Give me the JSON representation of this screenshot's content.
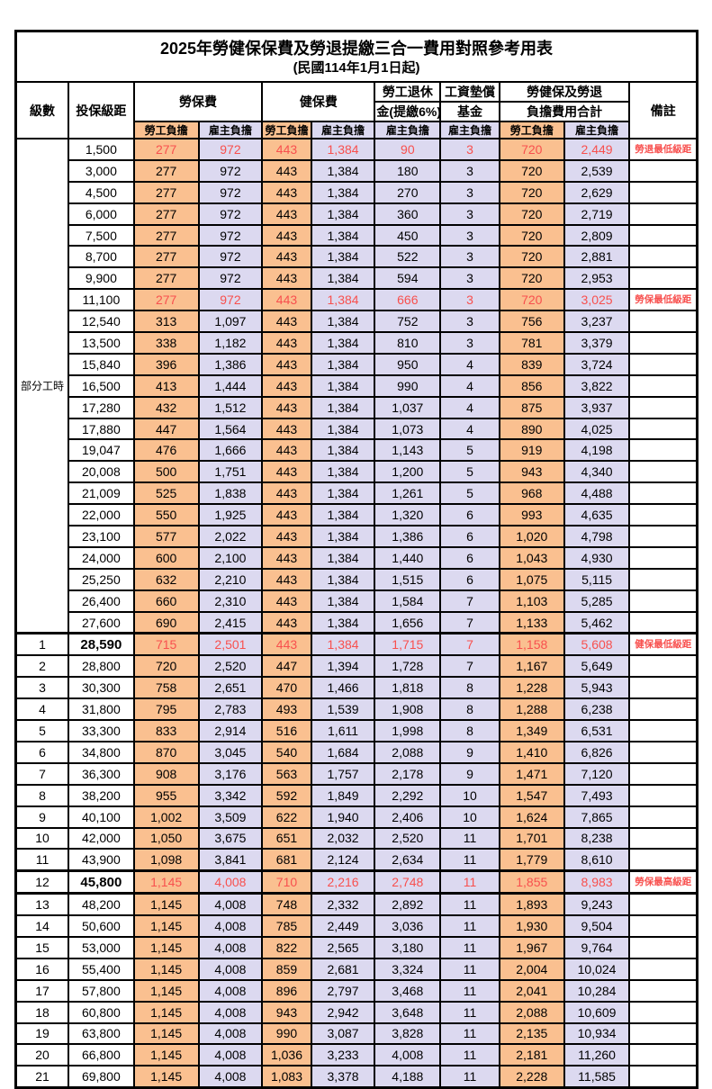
{
  "title": "2025年勞健保保費及勞退提繳三合一費用對照參考用表",
  "subtitle": "(民國114年1月1日起)",
  "colors": {
    "orange": "#FAC090",
    "lavender": "#DCD9F0",
    "red": "#F8504E"
  },
  "header": {
    "level": "級數",
    "bracket": "投保級距",
    "labor": "勞保費",
    "health": "健保費",
    "pension_line1": "勞工退休",
    "pension_line2": "金(提繳6%)",
    "wage_line1": "工資墊償",
    "wage_line2": "基金",
    "total_line1": "勞健保及勞退",
    "total_line2": "負擔費用合計",
    "note": "備註",
    "employee": "勞工負擔",
    "employer": "雇主負擔"
  },
  "part_time_label": "部分工時",
  "part_time_rowspan": 23,
  "rows": [
    {
      "level": "",
      "bracket": "1,500",
      "labor_ee": "277",
      "labor_er": "972",
      "health_ee": "443",
      "health_er": "1,384",
      "pension": "90",
      "wage": "3",
      "total_ee": "720",
      "total_er": "2,449",
      "note": "勞退最低級距",
      "red": true
    },
    {
      "level": "",
      "bracket": "3,000",
      "labor_ee": "277",
      "labor_er": "972",
      "health_ee": "443",
      "health_er": "1,384",
      "pension": "180",
      "wage": "3",
      "total_ee": "720",
      "total_er": "2,539",
      "note": ""
    },
    {
      "level": "",
      "bracket": "4,500",
      "labor_ee": "277",
      "labor_er": "972",
      "health_ee": "443",
      "health_er": "1,384",
      "pension": "270",
      "wage": "3",
      "total_ee": "720",
      "total_er": "2,629",
      "note": ""
    },
    {
      "level": "",
      "bracket": "6,000",
      "labor_ee": "277",
      "labor_er": "972",
      "health_ee": "443",
      "health_er": "1,384",
      "pension": "360",
      "wage": "3",
      "total_ee": "720",
      "total_er": "2,719",
      "note": ""
    },
    {
      "level": "",
      "bracket": "7,500",
      "labor_ee": "277",
      "labor_er": "972",
      "health_ee": "443",
      "health_er": "1,384",
      "pension": "450",
      "wage": "3",
      "total_ee": "720",
      "total_er": "2,809",
      "note": ""
    },
    {
      "level": "",
      "bracket": "8,700",
      "labor_ee": "277",
      "labor_er": "972",
      "health_ee": "443",
      "health_er": "1,384",
      "pension": "522",
      "wage": "3",
      "total_ee": "720",
      "total_er": "2,881",
      "note": ""
    },
    {
      "level": "",
      "bracket": "9,900",
      "labor_ee": "277",
      "labor_er": "972",
      "health_ee": "443",
      "health_er": "1,384",
      "pension": "594",
      "wage": "3",
      "total_ee": "720",
      "total_er": "2,953",
      "note": ""
    },
    {
      "level": "",
      "bracket": "11,100",
      "labor_ee": "277",
      "labor_er": "972",
      "health_ee": "443",
      "health_er": "1,384",
      "pension": "666",
      "wage": "3",
      "total_ee": "720",
      "total_er": "3,025",
      "note": "勞保最低級距",
      "red": true
    },
    {
      "level": "",
      "bracket": "12,540",
      "labor_ee": "313",
      "labor_er": "1,097",
      "health_ee": "443",
      "health_er": "1,384",
      "pension": "752",
      "wage": "3",
      "total_ee": "756",
      "total_er": "3,237",
      "note": ""
    },
    {
      "level": "",
      "bracket": "13,500",
      "labor_ee": "338",
      "labor_er": "1,182",
      "health_ee": "443",
      "health_er": "1,384",
      "pension": "810",
      "wage": "3",
      "total_ee": "781",
      "total_er": "3,379",
      "note": ""
    },
    {
      "level": "",
      "bracket": "15,840",
      "labor_ee": "396",
      "labor_er": "1,386",
      "health_ee": "443",
      "health_er": "1,384",
      "pension": "950",
      "wage": "4",
      "total_ee": "839",
      "total_er": "3,724",
      "note": ""
    },
    {
      "level": "",
      "bracket": "16,500",
      "labor_ee": "413",
      "labor_er": "1,444",
      "health_ee": "443",
      "health_er": "1,384",
      "pension": "990",
      "wage": "4",
      "total_ee": "856",
      "total_er": "3,822",
      "note": ""
    },
    {
      "level": "",
      "bracket": "17,280",
      "labor_ee": "432",
      "labor_er": "1,512",
      "health_ee": "443",
      "health_er": "1,384",
      "pension": "1,037",
      "wage": "4",
      "total_ee": "875",
      "total_er": "3,937",
      "note": ""
    },
    {
      "level": "",
      "bracket": "17,880",
      "labor_ee": "447",
      "labor_er": "1,564",
      "health_ee": "443",
      "health_er": "1,384",
      "pension": "1,073",
      "wage": "4",
      "total_ee": "890",
      "total_er": "4,025",
      "note": ""
    },
    {
      "level": "",
      "bracket": "19,047",
      "labor_ee": "476",
      "labor_er": "1,666",
      "health_ee": "443",
      "health_er": "1,384",
      "pension": "1,143",
      "wage": "5",
      "total_ee": "919",
      "total_er": "4,198",
      "note": ""
    },
    {
      "level": "",
      "bracket": "20,008",
      "labor_ee": "500",
      "labor_er": "1,751",
      "health_ee": "443",
      "health_er": "1,384",
      "pension": "1,200",
      "wage": "5",
      "total_ee": "943",
      "total_er": "4,340",
      "note": ""
    },
    {
      "level": "",
      "bracket": "21,009",
      "labor_ee": "525",
      "labor_er": "1,838",
      "health_ee": "443",
      "health_er": "1,384",
      "pension": "1,261",
      "wage": "5",
      "total_ee": "968",
      "total_er": "4,488",
      "note": ""
    },
    {
      "level": "",
      "bracket": "22,000",
      "labor_ee": "550",
      "labor_er": "1,925",
      "health_ee": "443",
      "health_er": "1,384",
      "pension": "1,320",
      "wage": "6",
      "total_ee": "993",
      "total_er": "4,635",
      "note": ""
    },
    {
      "level": "",
      "bracket": "23,100",
      "labor_ee": "577",
      "labor_er": "2,022",
      "health_ee": "443",
      "health_er": "1,384",
      "pension": "1,386",
      "wage": "6",
      "total_ee": "1,020",
      "total_er": "4,798",
      "note": ""
    },
    {
      "level": "",
      "bracket": "24,000",
      "labor_ee": "600",
      "labor_er": "2,100",
      "health_ee": "443",
      "health_er": "1,384",
      "pension": "1,440",
      "wage": "6",
      "total_ee": "1,043",
      "total_er": "4,930",
      "note": ""
    },
    {
      "level": "",
      "bracket": "25,250",
      "labor_ee": "632",
      "labor_er": "2,210",
      "health_ee": "443",
      "health_er": "1,384",
      "pension": "1,515",
      "wage": "6",
      "total_ee": "1,075",
      "total_er": "5,115",
      "note": ""
    },
    {
      "level": "",
      "bracket": "26,400",
      "labor_ee": "660",
      "labor_er": "2,310",
      "health_ee": "443",
      "health_er": "1,384",
      "pension": "1,584",
      "wage": "7",
      "total_ee": "1,103",
      "total_er": "5,285",
      "note": ""
    },
    {
      "level": "",
      "bracket": "27,600",
      "labor_ee": "690",
      "labor_er": "2,415",
      "health_ee": "443",
      "health_er": "1,384",
      "pension": "1,656",
      "wage": "7",
      "total_ee": "1,133",
      "total_er": "5,462",
      "note": ""
    },
    {
      "level": "1",
      "bracket": "28,590",
      "labor_ee": "715",
      "labor_er": "2,501",
      "health_ee": "443",
      "health_er": "1,384",
      "pension": "1,715",
      "wage": "7",
      "total_ee": "1,158",
      "total_er": "5,608",
      "note": "健保最低級距",
      "red": true,
      "bold": true
    },
    {
      "level": "2",
      "bracket": "28,800",
      "labor_ee": "720",
      "labor_er": "2,520",
      "health_ee": "447",
      "health_er": "1,394",
      "pension": "1,728",
      "wage": "7",
      "total_ee": "1,167",
      "total_er": "5,649",
      "note": ""
    },
    {
      "level": "3",
      "bracket": "30,300",
      "labor_ee": "758",
      "labor_er": "2,651",
      "health_ee": "470",
      "health_er": "1,466",
      "pension": "1,818",
      "wage": "8",
      "total_ee": "1,228",
      "total_er": "5,943",
      "note": ""
    },
    {
      "level": "4",
      "bracket": "31,800",
      "labor_ee": "795",
      "labor_er": "2,783",
      "health_ee": "493",
      "health_er": "1,539",
      "pension": "1,908",
      "wage": "8",
      "total_ee": "1,288",
      "total_er": "6,238",
      "note": ""
    },
    {
      "level": "5",
      "bracket": "33,300",
      "labor_ee": "833",
      "labor_er": "2,914",
      "health_ee": "516",
      "health_er": "1,611",
      "pension": "1,998",
      "wage": "8",
      "total_ee": "1,349",
      "total_er": "6,531",
      "note": ""
    },
    {
      "level": "6",
      "bracket": "34,800",
      "labor_ee": "870",
      "labor_er": "3,045",
      "health_ee": "540",
      "health_er": "1,684",
      "pension": "2,088",
      "wage": "9",
      "total_ee": "1,410",
      "total_er": "6,826",
      "note": ""
    },
    {
      "level": "7",
      "bracket": "36,300",
      "labor_ee": "908",
      "labor_er": "3,176",
      "health_ee": "563",
      "health_er": "1,757",
      "pension": "2,178",
      "wage": "9",
      "total_ee": "1,471",
      "total_er": "7,120",
      "note": ""
    },
    {
      "level": "8",
      "bracket": "38,200",
      "labor_ee": "955",
      "labor_er": "3,342",
      "health_ee": "592",
      "health_er": "1,849",
      "pension": "2,292",
      "wage": "10",
      "total_ee": "1,547",
      "total_er": "7,493",
      "note": ""
    },
    {
      "level": "9",
      "bracket": "40,100",
      "labor_ee": "1,002",
      "labor_er": "3,509",
      "health_ee": "622",
      "health_er": "1,940",
      "pension": "2,406",
      "wage": "10",
      "total_ee": "1,624",
      "total_er": "7,865",
      "note": ""
    },
    {
      "level": "10",
      "bracket": "42,000",
      "labor_ee": "1,050",
      "labor_er": "3,675",
      "health_ee": "651",
      "health_er": "2,032",
      "pension": "2,520",
      "wage": "11",
      "total_ee": "1,701",
      "total_er": "8,238",
      "note": ""
    },
    {
      "level": "11",
      "bracket": "43,900",
      "labor_ee": "1,098",
      "labor_er": "3,841",
      "health_ee": "681",
      "health_er": "2,124",
      "pension": "2,634",
      "wage": "11",
      "total_ee": "1,779",
      "total_er": "8,610",
      "note": ""
    },
    {
      "level": "12",
      "bracket": "45,800",
      "labor_ee": "1,145",
      "labor_er": "4,008",
      "health_ee": "710",
      "health_er": "2,216",
      "pension": "2,748",
      "wage": "11",
      "total_ee": "1,855",
      "total_er": "8,983",
      "note": "勞保最高級距",
      "red": true,
      "bold": true
    },
    {
      "level": "13",
      "bracket": "48,200",
      "labor_ee": "1,145",
      "labor_er": "4,008",
      "health_ee": "748",
      "health_er": "2,332",
      "pension": "2,892",
      "wage": "11",
      "total_ee": "1,893",
      "total_er": "9,243",
      "note": ""
    },
    {
      "level": "14",
      "bracket": "50,600",
      "labor_ee": "1,145",
      "labor_er": "4,008",
      "health_ee": "785",
      "health_er": "2,449",
      "pension": "3,036",
      "wage": "11",
      "total_ee": "1,930",
      "total_er": "9,504",
      "note": ""
    },
    {
      "level": "15",
      "bracket": "53,000",
      "labor_ee": "1,145",
      "labor_er": "4,008",
      "health_ee": "822",
      "health_er": "2,565",
      "pension": "3,180",
      "wage": "11",
      "total_ee": "1,967",
      "total_er": "9,764",
      "note": ""
    },
    {
      "level": "16",
      "bracket": "55,400",
      "labor_ee": "1,145",
      "labor_er": "4,008",
      "health_ee": "859",
      "health_er": "2,681",
      "pension": "3,324",
      "wage": "11",
      "total_ee": "2,004",
      "total_er": "10,024",
      "note": ""
    },
    {
      "level": "17",
      "bracket": "57,800",
      "labor_ee": "1,145",
      "labor_er": "4,008",
      "health_ee": "896",
      "health_er": "2,797",
      "pension": "3,468",
      "wage": "11",
      "total_ee": "2,041",
      "total_er": "10,284",
      "note": ""
    },
    {
      "level": "18",
      "bracket": "60,800",
      "labor_ee": "1,145",
      "labor_er": "4,008",
      "health_ee": "943",
      "health_er": "2,942",
      "pension": "3,648",
      "wage": "11",
      "total_ee": "2,088",
      "total_er": "10,609",
      "note": ""
    },
    {
      "level": "19",
      "bracket": "63,800",
      "labor_ee": "1,145",
      "labor_er": "4,008",
      "health_ee": "990",
      "health_er": "3,087",
      "pension": "3,828",
      "wage": "11",
      "total_ee": "2,135",
      "total_er": "10,934",
      "note": ""
    },
    {
      "level": "20",
      "bracket": "66,800",
      "labor_ee": "1,145",
      "labor_er": "4,008",
      "health_ee": "1,036",
      "health_er": "3,233",
      "pension": "4,008",
      "wage": "11",
      "total_ee": "2,181",
      "total_er": "11,260",
      "note": ""
    },
    {
      "level": "21",
      "bracket": "69,800",
      "labor_ee": "1,145",
      "labor_er": "4,008",
      "health_ee": "1,083",
      "health_er": "3,378",
      "pension": "4,188",
      "wage": "11",
      "total_ee": "2,228",
      "total_er": "11,585",
      "note": ""
    }
  ]
}
